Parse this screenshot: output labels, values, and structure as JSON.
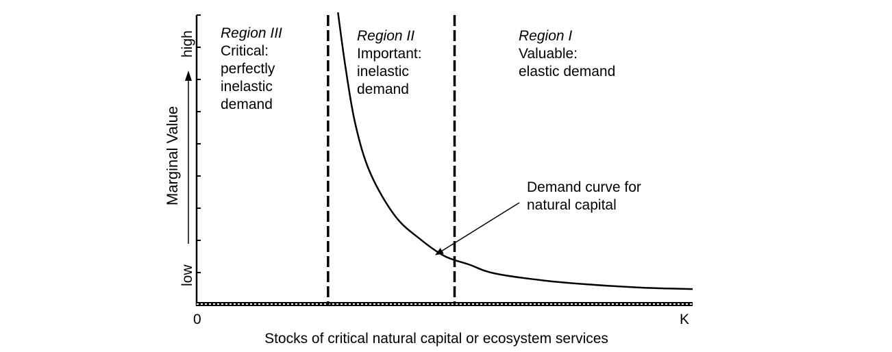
{
  "chart_data": {
    "type": "line",
    "title": "",
    "xlabel": "Stocks of critical natural capital or ecosystem services",
    "ylabel": "Marginal Value",
    "x_ticks": {
      "start": "0",
      "end": "K"
    },
    "y_ticks": {
      "low": "low",
      "high": "high"
    },
    "grid": false,
    "series": [
      {
        "x": [
          0.285,
          0.3,
          0.32,
          0.35,
          0.4,
          0.45,
          0.5,
          0.55,
          0.6,
          0.7,
          0.8,
          0.9,
          1.0
        ],
        "y": [
          1.02,
          0.82,
          0.62,
          0.45,
          0.3,
          0.22,
          0.16,
          0.13,
          0.1,
          0.075,
          0.06,
          0.05,
          0.045
        ]
      }
    ],
    "thresholds": [
      0.265,
      0.52
    ],
    "regions": [
      {
        "name": "Region III",
        "lines": [
          "Critical:",
          "perfectly",
          "inelastic",
          "demand"
        ]
      },
      {
        "name": "Region II",
        "lines": [
          "Important:",
          "inelastic",
          "demand"
        ]
      },
      {
        "name": "Region I",
        "lines": [
          "Valuable:",
          "elastic demand"
        ]
      }
    ],
    "annotation": {
      "lines": [
        "Demand curve for",
        "natural capital"
      ]
    }
  }
}
